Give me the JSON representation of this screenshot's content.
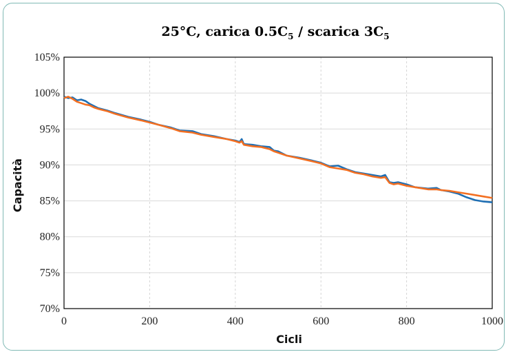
{
  "chart_data": {
    "type": "line",
    "title": {
      "prefix": "25°C, carica 0.5C",
      "sub1": "5",
      "middle": " / scarica 3C",
      "sub2": "5"
    },
    "xlabel": "Cicli",
    "ylabel": "Capacità",
    "xlim": [
      0,
      1000
    ],
    "ylim": [
      70,
      105
    ],
    "x_ticks": [
      "0",
      "200",
      "400",
      "600",
      "800",
      "1000"
    ],
    "y_ticks": [
      "70%",
      "75%",
      "80%",
      "85%",
      "90%",
      "95%",
      "100%",
      "105%"
    ],
    "grid": true,
    "series": [
      {
        "color": "#1f6fb4",
        "x": [
          0,
          10,
          20,
          30,
          40,
          50,
          60,
          70,
          80,
          100,
          120,
          150,
          180,
          200,
          220,
          250,
          270,
          300,
          320,
          350,
          380,
          400,
          410,
          415,
          420,
          440,
          460,
          480,
          490,
          500,
          520,
          550,
          580,
          600,
          620,
          640,
          660,
          680,
          700,
          720,
          740,
          750,
          760,
          770,
          780,
          800,
          820,
          850,
          870,
          880,
          900,
          920,
          940,
          960,
          980,
          1000
        ],
        "y": [
          99.5,
          99.3,
          99.4,
          99.0,
          99.1,
          98.9,
          98.5,
          98.2,
          97.9,
          97.6,
          97.2,
          96.7,
          96.3,
          96.0,
          95.6,
          95.2,
          94.8,
          94.7,
          94.3,
          94.0,
          93.6,
          93.4,
          93.2,
          93.6,
          92.9,
          92.8,
          92.6,
          92.5,
          92.0,
          91.9,
          91.3,
          91.0,
          90.6,
          90.3,
          89.8,
          89.9,
          89.4,
          89.0,
          88.8,
          88.6,
          88.4,
          88.6,
          87.6,
          87.5,
          87.6,
          87.3,
          86.9,
          86.7,
          86.8,
          86.5,
          86.3,
          86.0,
          85.5,
          85.1,
          84.9,
          84.8
        ]
      },
      {
        "color": "#f36f21",
        "x": [
          0,
          10,
          20,
          30,
          40,
          50,
          60,
          70,
          80,
          100,
          120,
          150,
          180,
          200,
          220,
          250,
          270,
          300,
          320,
          350,
          380,
          400,
          410,
          415,
          420,
          440,
          460,
          480,
          490,
          500,
          520,
          550,
          580,
          600,
          620,
          640,
          660,
          680,
          700,
          720,
          740,
          750,
          760,
          770,
          780,
          800,
          820,
          850,
          870,
          880,
          900,
          920,
          940,
          960,
          980,
          1000
        ],
        "y": [
          99.3,
          99.5,
          99.2,
          98.8,
          98.6,
          98.4,
          98.3,
          98.0,
          97.8,
          97.5,
          97.1,
          96.6,
          96.2,
          95.9,
          95.6,
          95.1,
          94.7,
          94.5,
          94.2,
          93.9,
          93.6,
          93.3,
          93.1,
          93.3,
          92.8,
          92.6,
          92.5,
          92.2,
          91.9,
          91.7,
          91.3,
          90.9,
          90.5,
          90.2,
          89.7,
          89.5,
          89.3,
          88.9,
          88.7,
          88.4,
          88.2,
          88.3,
          87.5,
          87.3,
          87.4,
          87.1,
          86.9,
          86.6,
          86.6,
          86.5,
          86.4,
          86.2,
          86.0,
          85.8,
          85.6,
          85.4
        ]
      }
    ]
  }
}
